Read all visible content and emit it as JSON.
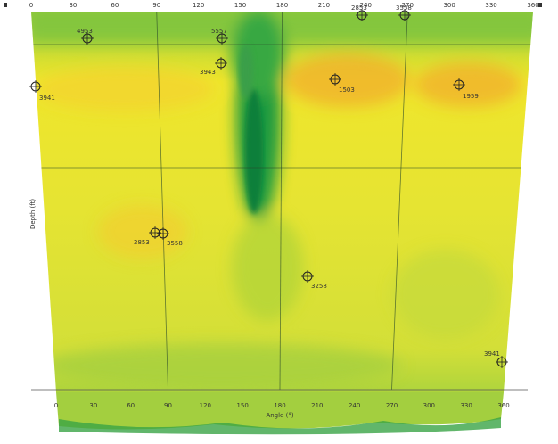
{
  "top_axis": {
    "ticks": [
      "0",
      "30",
      "60",
      "90",
      "120",
      "150",
      "180",
      "210",
      "240",
      "270",
      "300",
      "330",
      "360"
    ]
  },
  "bottom_axis": {
    "ticks": [
      "0",
      "30",
      "60",
      "90",
      "120",
      "150",
      "180",
      "210",
      "240",
      "270",
      "300",
      "330",
      "360"
    ],
    "label": "Angle (°)"
  },
  "left_axis": {
    "label": "Depth (ft)"
  },
  "markers": [
    {
      "label": "4953"
    },
    {
      "label": "5557"
    },
    {
      "label": "2853"
    },
    {
      "label": "3558"
    },
    {
      "label": "3943"
    },
    {
      "label": "3941"
    },
    {
      "label": "1503"
    },
    {
      "label": "1959"
    },
    {
      "label": "2853"
    },
    {
      "label": "3558"
    },
    {
      "label": "3258"
    },
    {
      "label": "3941"
    }
  ]
}
